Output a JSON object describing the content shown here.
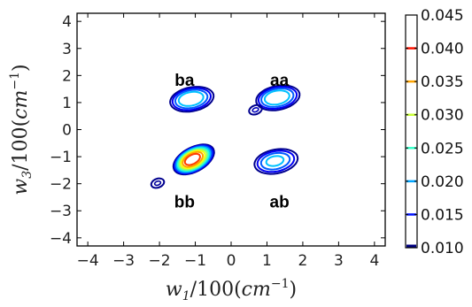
{
  "chart_data": {
    "type": "contour",
    "xlabel": "w_1/100(cm^-1)",
    "ylabel": "w_3/100(cm^-1)",
    "xlabel_parts": [
      "w",
      "1",
      "/100(",
      "cm",
      "−1",
      ")"
    ],
    "ylabel_parts": [
      "w",
      "3",
      "/100(",
      "cm",
      "−1",
      ")"
    ],
    "xlim": [
      -4.3,
      4.3
    ],
    "ylim": [
      -4.3,
      4.3
    ],
    "xticks": [
      -4,
      -3,
      -2,
      -1,
      0,
      1,
      2,
      3,
      4
    ],
    "yticks": [
      -4,
      -3,
      -2,
      -1,
      0,
      1,
      2,
      3,
      4
    ],
    "grid": false,
    "colorbar": {
      "min": 0.01,
      "max": 0.045,
      "ticks": [
        "0.010",
        "0.015",
        "0.020",
        "0.025",
        "0.030",
        "0.035",
        "0.040",
        "0.045"
      ],
      "tick_values": [
        0.01,
        0.015,
        0.02,
        0.025,
        0.03,
        0.035,
        0.04,
        0.045
      ],
      "colors": [
        "#00007f",
        "#0000ff",
        "#007fff",
        "#00ffff",
        "#7fff7f",
        "#ffff00",
        "#ff7f00",
        "#ff0000",
        "#7f0000"
      ]
    },
    "peaks": [
      {
        "label": "ba",
        "x": -1.15,
        "y": 1.15,
        "peak_value": 0.024,
        "label_x": -1.3,
        "label_y": 1.85
      },
      {
        "label": "aa",
        "x": 1.25,
        "y": 1.2,
        "peak_value": 0.024,
        "label_x": 1.35,
        "label_y": 1.85
      },
      {
        "label": "bb",
        "x": -1.1,
        "y": -1.1,
        "peak_value": 0.041,
        "label_x": -1.3,
        "label_y": -2.65
      },
      {
        "label": "ab",
        "x": 1.2,
        "y": -1.15,
        "peak_value": 0.021,
        "label_x": 1.35,
        "label_y": -2.65
      }
    ],
    "side_blobs": [
      {
        "x": 0.68,
        "y": 0.73,
        "peak_value": 0.012
      },
      {
        "x": -2.05,
        "y": -1.98,
        "peak_value": 0.011
      }
    ]
  }
}
